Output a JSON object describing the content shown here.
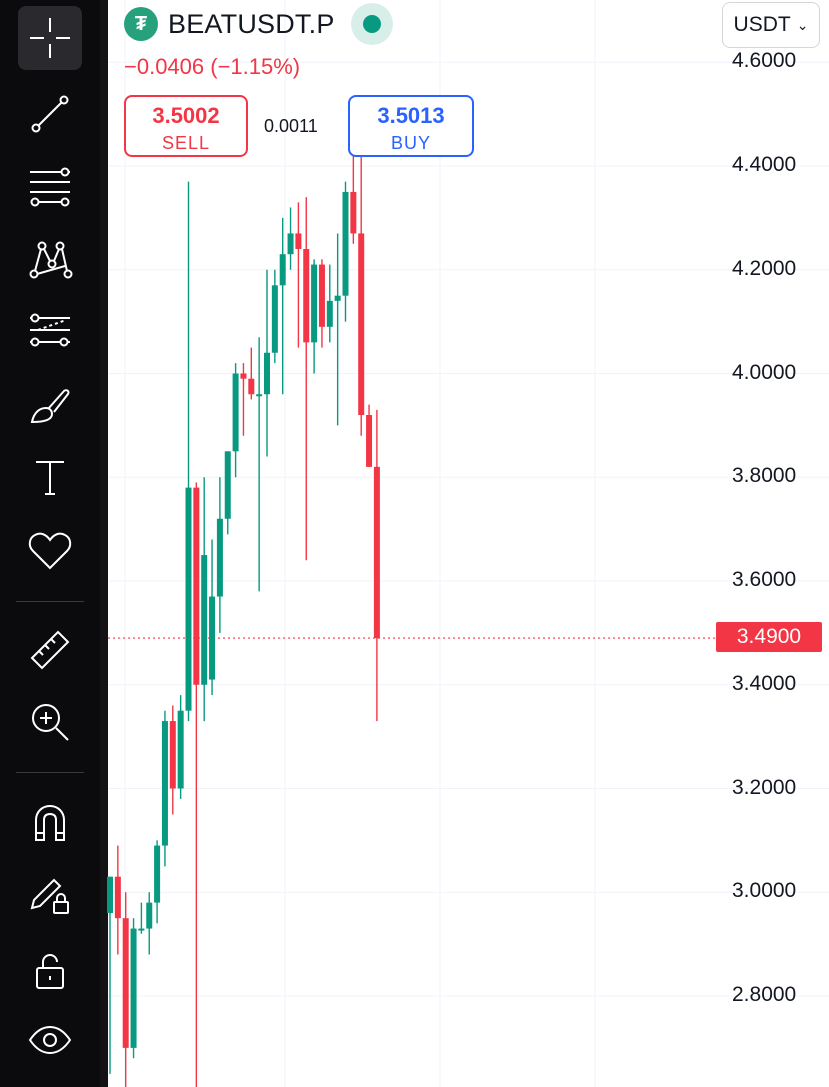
{
  "toolbar": {
    "tools": [
      {
        "name": "crosshair-icon",
        "active": true
      },
      {
        "name": "trend-line-icon"
      },
      {
        "name": "fib-retracement-icon"
      },
      {
        "name": "pattern-icon"
      },
      {
        "name": "prediction-icon"
      },
      {
        "name": "brush-icon"
      },
      {
        "name": "text-icon"
      },
      {
        "name": "favorite-heart-icon"
      },
      {
        "name": "ruler-icon"
      },
      {
        "name": "zoom-in-icon"
      },
      {
        "name": "magnet-icon"
      },
      {
        "name": "lock-drawing-icon"
      },
      {
        "name": "unlock-icon"
      },
      {
        "name": "eye-icon"
      }
    ]
  },
  "header": {
    "symbol": "BEATUSDT.P",
    "logo_glyph": "₮",
    "status_color": "#089981",
    "change": "−0.0406 (−1.15%)",
    "currency": "USDT",
    "currency_chevron": "⌄"
  },
  "order": {
    "sell_price": "3.5002",
    "sell_label": "SELL",
    "spread": "0.0011",
    "buy_price": "3.5013",
    "buy_label": "BUY"
  },
  "colors": {
    "up": "#089981",
    "down": "#f23645",
    "grid": "#f0f3fa"
  },
  "chart_data": {
    "type": "candlestick",
    "y_axis": {
      "min": 2.6,
      "max": 4.7,
      "ticks": [
        "4.6000",
        "4.4000",
        "4.2000",
        "4.0000",
        "3.8000",
        "3.6000",
        "3.4000",
        "3.2000",
        "3.0000",
        "2.8000"
      ]
    },
    "last_price": "3.4900",
    "last_price_value": 3.49,
    "candles": [
      {
        "o": 2.96,
        "h": 3.03,
        "l": 2.65,
        "c": 3.03
      },
      {
        "o": 3.03,
        "h": 3.09,
        "l": 2.88,
        "c": 2.95
      },
      {
        "o": 2.95,
        "h": 3.0,
        "l": 2.6,
        "c": 2.7
      },
      {
        "o": 2.7,
        "h": 2.95,
        "l": 2.68,
        "c": 2.93
      },
      {
        "o": 2.93,
        "h": 2.98,
        "l": 2.92,
        "c": 2.93
      },
      {
        "o": 2.93,
        "h": 3.0,
        "l": 2.88,
        "c": 2.98
      },
      {
        "o": 2.98,
        "h": 3.1,
        "l": 2.94,
        "c": 3.09
      },
      {
        "o": 3.09,
        "h": 3.35,
        "l": 3.05,
        "c": 3.33
      },
      {
        "o": 3.33,
        "h": 3.36,
        "l": 3.15,
        "c": 3.2
      },
      {
        "o": 3.2,
        "h": 3.38,
        "l": 3.18,
        "c": 3.35
      },
      {
        "o": 3.35,
        "h": 4.37,
        "l": 3.33,
        "c": 3.78
      },
      {
        "o": 3.78,
        "h": 3.79,
        "l": 2.6,
        "c": 3.4
      },
      {
        "o": 3.4,
        "h": 3.8,
        "l": 3.33,
        "c": 3.65
      },
      {
        "o": 3.41,
        "h": 3.68,
        "l": 3.38,
        "c": 3.57
      },
      {
        "o": 3.57,
        "h": 3.8,
        "l": 3.5,
        "c": 3.72
      },
      {
        "o": 3.72,
        "h": 3.85,
        "l": 3.69,
        "c": 3.85
      },
      {
        "o": 3.85,
        "h": 4.02,
        "l": 3.8,
        "c": 4.0
      },
      {
        "o": 4.0,
        "h": 4.02,
        "l": 3.88,
        "c": 3.99
      },
      {
        "o": 3.99,
        "h": 4.05,
        "l": 3.95,
        "c": 3.96
      },
      {
        "o": 3.96,
        "h": 4.07,
        "l": 3.58,
        "c": 3.96
      },
      {
        "o": 3.96,
        "h": 4.2,
        "l": 3.84,
        "c": 4.04
      },
      {
        "o": 4.04,
        "h": 4.2,
        "l": 4.02,
        "c": 4.17
      },
      {
        "o": 4.17,
        "h": 4.3,
        "l": 3.96,
        "c": 4.23
      },
      {
        "o": 4.23,
        "h": 4.32,
        "l": 4.2,
        "c": 4.27
      },
      {
        "o": 4.27,
        "h": 4.33,
        "l": 4.05,
        "c": 4.24
      },
      {
        "o": 4.24,
        "h": 4.34,
        "l": 3.64,
        "c": 4.06
      },
      {
        "o": 4.06,
        "h": 4.22,
        "l": 4.0,
        "c": 4.21
      },
      {
        "o": 4.21,
        "h": 4.22,
        "l": 4.05,
        "c": 4.09
      },
      {
        "o": 4.09,
        "h": 4.21,
        "l": 4.06,
        "c": 4.14
      },
      {
        "o": 4.14,
        "h": 4.27,
        "l": 3.9,
        "c": 4.15
      },
      {
        "o": 4.15,
        "h": 4.37,
        "l": 4.1,
        "c": 4.35
      },
      {
        "o": 4.35,
        "h": 4.48,
        "l": 4.25,
        "c": 4.27
      },
      {
        "o": 4.27,
        "h": 4.42,
        "l": 3.88,
        "c": 3.92
      },
      {
        "o": 3.92,
        "h": 3.94,
        "l": 3.82,
        "c": 3.82
      },
      {
        "o": 3.82,
        "h": 3.93,
        "l": 3.33,
        "c": 3.49
      }
    ]
  }
}
